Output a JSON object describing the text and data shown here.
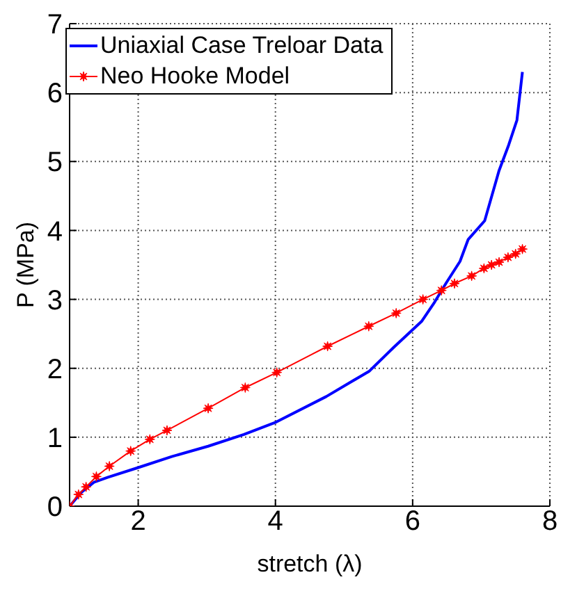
{
  "chart_data": {
    "type": "line",
    "xlabel": "stretch (λ)",
    "ylabel": "P (MPa)",
    "xlim": [
      1,
      8
    ],
    "xticks": [
      2,
      4,
      6,
      8
    ],
    "ylim": [
      0,
      7
    ],
    "yticks": [
      0,
      1,
      2,
      3,
      4,
      5,
      6,
      7
    ],
    "grid": true,
    "legend": "top left",
    "series": [
      {
        "name": "Uniaxial Case Treloar Data",
        "color": "#0000ff",
        "marker": "none",
        "x": [
          1,
          1.17,
          1.36,
          1.56,
          2,
          2.49,
          3.02,
          3.54,
          4.01,
          4.74,
          5.37,
          5.73,
          6.13,
          6.32,
          6.49,
          6.69,
          6.81,
          7.05,
          7.26,
          7.4,
          7.52,
          7.6
        ],
        "values": [
          0,
          0.2,
          0.35,
          0.42,
          0.56,
          0.72,
          0.87,
          1.04,
          1.22,
          1.59,
          1.96,
          2.31,
          2.68,
          2.96,
          3.24,
          3.55,
          3.87,
          4.14,
          4.87,
          5.24,
          5.6,
          6.3
        ]
      },
      {
        "name": "Neo Hooke Model",
        "color": "#ff0000",
        "marker": "star",
        "x": [
          1,
          1.13,
          1.24,
          1.39,
          1.58,
          1.89,
          2.17,
          2.42,
          3.02,
          3.56,
          4.02,
          4.76,
          5.36,
          5.76,
          6.15,
          6.42,
          6.61,
          6.86,
          7.04,
          7.15,
          7.26,
          7.39,
          7.5,
          7.6
        ],
        "values": [
          0,
          0.17,
          0.28,
          0.43,
          0.58,
          0.8,
          0.97,
          1.1,
          1.42,
          1.72,
          1.94,
          2.32,
          2.61,
          2.8,
          3,
          3.13,
          3.23,
          3.34,
          3.45,
          3.5,
          3.54,
          3.61,
          3.66,
          3.73
        ]
      }
    ]
  }
}
